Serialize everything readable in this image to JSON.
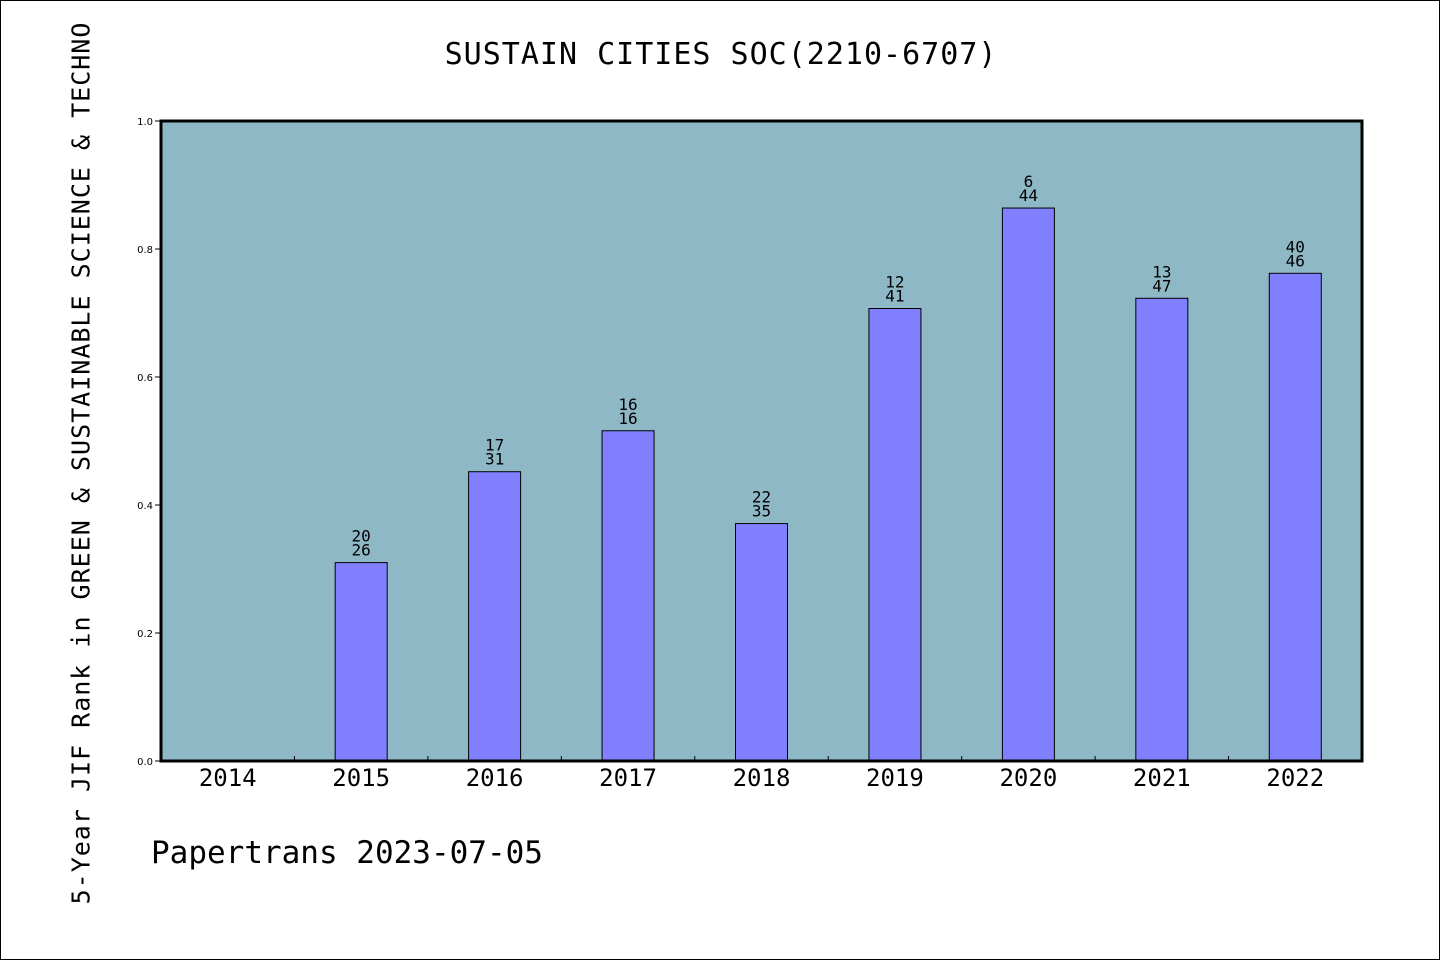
{
  "chart_data": {
    "type": "bar",
    "title": "SUSTAIN CITIES SOC(2210-6707)",
    "xlabel": "",
    "ylabel": "5-Year JIF Rank in GREEN & SUSTAINABLE SCIENCE & TECHNO",
    "categories": [
      "2014",
      "2015",
      "2016",
      "2017",
      "2018",
      "2019",
      "2020",
      "2021",
      "2022"
    ],
    "values": [
      null,
      0.31,
      0.452,
      0.516,
      0.371,
      0.707,
      0.864,
      0.723,
      0.762
    ],
    "labels_top": [
      "",
      "20",
      "17",
      "16",
      "22",
      "12",
      "6",
      "13",
      "40"
    ],
    "labels_bottom": [
      "",
      "26",
      "31",
      "16",
      "35",
      "41",
      "44",
      "47",
      "46"
    ],
    "ylim": [
      0,
      1.0
    ],
    "yticks": [
      "0.0",
      "0.2",
      "0.4",
      "0.6",
      "0.8",
      "1.0"
    ],
    "grid": false,
    "colors": {
      "plot_background": "#8fb8c7",
      "bar": "#8080ff"
    }
  },
  "footer": {
    "text": "Papertrans 2023-07-05"
  }
}
